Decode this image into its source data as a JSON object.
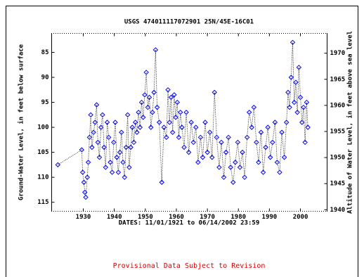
{
  "chart_data": {
    "type": "line",
    "title": "USGS 474011117072901 25N/45E-16C01",
    "x_label": "DATES: 11/01/1921 to 06/14/2002 23:59",
    "y_label": "Ground-Water Level, in feet below surface",
    "y2_label": "Altitude of Water Level, in feet above sea level",
    "footnote": "Provisional Data Subject to Revision",
    "xlim": [
      1919.8,
      2008.6
    ],
    "xticks": [
      1930,
      1940,
      1950,
      1960,
      1970,
      1980,
      1990,
      2000
    ],
    "ylim": [
      81.2,
      116.8
    ],
    "invert_y": true,
    "yticks": [
      85,
      90,
      95,
      100,
      105,
      110,
      115
    ],
    "y2lim": [
      1939.7,
      1973.8
    ],
    "y2ticks": [
      1940,
      1945,
      1950,
      1955,
      1960,
      1965,
      1970
    ],
    "series": [
      {
        "color": "#0000ff",
        "x": [
          1921.8,
          1929.5,
          1929.8,
          1930.2,
          1930.5,
          1930.8,
          1931.3,
          1931.6,
          1932.0,
          1932.4,
          1932.8,
          1933.3,
          1933.8,
          1934.3,
          1934.7,
          1935.2,
          1935.7,
          1936.2,
          1936.7,
          1937.2,
          1937.7,
          1938.2,
          1938.7,
          1939.3,
          1939.8,
          1940.3,
          1940.8,
          1941.3,
          1941.8,
          1942.3,
          1942.8,
          1943.3,
          1943.8,
          1944.3,
          1944.8,
          1945.3,
          1945.8,
          1946.3,
          1946.8,
          1947.3,
          1947.8,
          1948.3,
          1948.8,
          1949.3,
          1949.8,
          1950.3,
          1950.8,
          1951.3,
          1951.8,
          1952.3,
          1952.8,
          1953.3,
          1953.8,
          1954.5,
          1955.3,
          1956.0,
          1956.8,
          1957.3,
          1957.8,
          1958.3,
          1958.8,
          1959.3,
          1959.8,
          1960.3,
          1960.8,
          1961.3,
          1961.8,
          1962.5,
          1963.2,
          1964.0,
          1964.8,
          1965.5,
          1966.3,
          1967.0,
          1967.8,
          1968.5,
          1969.3,
          1970.0,
          1970.8,
          1971.5,
          1972.3,
          1973.0,
          1973.8,
          1974.5,
          1975.3,
          1976.0,
          1976.8,
          1977.5,
          1978.3,
          1979.0,
          1979.8,
          1980.5,
          1981.3,
          1982.0,
          1982.8,
          1983.5,
          1984.3,
          1985.0,
          1985.8,
          1986.5,
          1987.3,
          1988.0,
          1988.8,
          1989.5,
          1990.3,
          1991.0,
          1991.8,
          1992.5,
          1993.3,
          1994.0,
          1994.8,
          1995.5,
          1996.0,
          1996.5,
          1997.0,
          1997.5,
          1998.0,
          1998.5,
          1999.0,
          1999.5,
          2000.0,
          2000.5,
          2001.0,
          2001.5,
          2002.0,
          2002.4
        ],
        "values": [
          107.5,
          104.5,
          109,
          111,
          113,
          114,
          110,
          107,
          102,
          97.5,
          104,
          101,
          99,
          95.5,
          103,
          106,
          100,
          97.5,
          104,
          108,
          99,
          102,
          107,
          109,
          103,
          99,
          106,
          109,
          105,
          101,
          107,
          110,
          104,
          97.5,
          108,
          104,
          100,
          103,
          99,
          101,
          97,
          100,
          95,
          98,
          93.5,
          89,
          96,
          94,
          100,
          97,
          93,
          84.5,
          96,
          99,
          111,
          100,
          102,
          92.5,
          99,
          94,
          101,
          93.5,
          98,
          95,
          102,
          97,
          100,
          104,
          97,
          105,
          99,
          103,
          100,
          107,
          102,
          106,
          99,
          105,
          101,
          106,
          93,
          102,
          108,
          103,
          110,
          105,
          102,
          108,
          111,
          107,
          103,
          108,
          105,
          110,
          102,
          97,
          100,
          96,
          103,
          107,
          101,
          109,
          104,
          100,
          106,
          103,
          99,
          107,
          109,
          101,
          106,
          99,
          93,
          96,
          90,
          83,
          95,
          91,
          97,
          88,
          94,
          99,
          96,
          103,
          95,
          100
        ]
      }
    ]
  }
}
